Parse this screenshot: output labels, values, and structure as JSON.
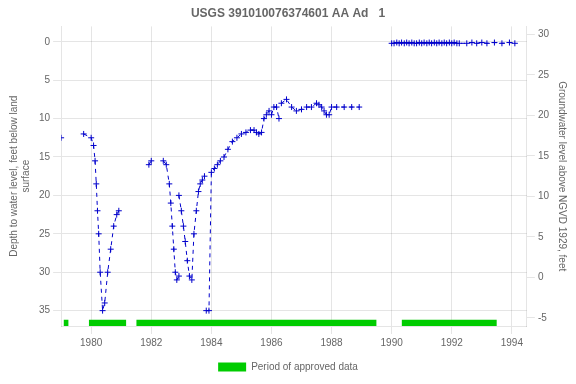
{
  "chart_data": {
    "type": "line",
    "title": "USGS 391010076374601 AA Ad   1",
    "ylabel": "Depth to water level, feet below land\nsurface",
    "y2label": "Groundwater level above NGVD 1929, feet",
    "xlim": [
      1979.0,
      1994.5
    ],
    "xticks": [
      1980,
      1982,
      1984,
      1986,
      1988,
      1990,
      1992,
      1994
    ],
    "ylim": [
      37,
      -2
    ],
    "yticks": [
      0,
      5,
      10,
      15,
      20,
      25,
      30,
      35
    ],
    "y2lim": [
      -6,
      31
    ],
    "y2ticks": [
      30,
      25,
      20,
      15,
      10,
      5,
      0,
      -5
    ],
    "grid": true,
    "legend": "bottom",
    "x": [
      1979.0,
      null,
      1979.75,
      1980.0,
      1980.08,
      1980.13,
      1980.17,
      1980.21,
      1980.25,
      1980.3,
      1980.38,
      1980.45,
      1980.55,
      1980.65,
      1980.75,
      1980.85,
      1980.92,
      null,
      1981.92,
      1982.0,
      null,
      1982.4,
      1982.5,
      1982.6,
      1982.65,
      1982.7,
      1982.75,
      1982.8,
      1982.85,
      1982.92,
      null,
      1982.92,
      1983.0,
      1983.07,
      1983.13,
      1983.2,
      1983.27,
      1983.35,
      1983.42,
      1983.5,
      1983.57,
      1983.63,
      1983.7,
      1983.77,
      null,
      1983.83,
      1983.92,
      1984.0,
      1984.1,
      1984.2,
      1984.3,
      null,
      1984.42,
      1984.55,
      1984.7,
      1984.85,
      1985.0,
      1985.15,
      1985.3,
      1985.42,
      1985.5,
      1985.58,
      1985.67,
      1985.75,
      1985.83,
      1985.92,
      1986.0,
      1986.08,
      1986.17,
      1986.25,
      null,
      1986.33,
      1986.5,
      1986.67,
      1986.83,
      1987.0,
      1987.17,
      1987.33,
      1987.5,
      1987.58,
      1987.67,
      1987.75,
      1987.83,
      1987.92,
      1988.0,
      1988.17,
      1988.42,
      1988.67,
      1988.92,
      null,
      1990.0,
      1990.08,
      1990.17,
      1990.25,
      1990.33,
      1990.42,
      1990.5,
      1990.58,
      1990.67,
      1990.75,
      1990.83,
      1990.92,
      1991.0,
      1991.08,
      1991.17,
      1991.25,
      1991.33,
      1991.42,
      1991.5,
      1991.58,
      1991.67,
      1991.75,
      1991.83,
      1991.92,
      1992.0,
      1992.08,
      1992.17,
      1992.25,
      1992.5,
      1992.67,
      1992.83,
      1993.0,
      1993.17,
      1993.42,
      1993.67,
      1993.92,
      1994.1
    ],
    "series": [
      {
        "color": "#0000cc",
        "line_style": "dashed",
        "marker": "plus",
        "values": [
          12.5,
          null,
          12.0,
          12.5,
          13.5,
          15.5,
          18.5,
          22.0,
          25.0,
          30.0,
          35.0,
          34.0,
          30.0,
          27.0,
          24.0,
          22.5,
          22.0,
          null,
          16.0,
          15.5,
          null,
          15.5,
          16.0,
          18.5,
          21.0,
          24.0,
          27.0,
          30.0,
          31.0,
          30.5,
          null,
          20.0,
          22.0,
          24.0,
          26.0,
          28.5,
          30.5,
          31.0,
          25.0,
          22.0,
          19.5,
          18.5,
          18.0,
          17.5,
          null,
          35.0,
          35.0,
          17.0,
          16.5,
          16.0,
          15.5,
          null,
          15.0,
          14.0,
          13.0,
          12.5,
          12.0,
          11.8,
          11.5,
          11.5,
          11.8,
          12.0,
          11.8,
          10.0,
          9.5,
          9.0,
          9.5,
          8.5,
          8.5,
          10.0,
          null,
          8.0,
          7.5,
          8.5,
          9.0,
          8.8,
          8.5,
          8.5,
          8.0,
          8.2,
          8.5,
          9.0,
          9.5,
          9.5,
          8.5,
          8.5,
          8.5,
          8.5,
          8.5,
          null,
          0.2,
          0.2,
          0.1,
          0.2,
          0.1,
          0.2,
          0.1,
          0.2,
          0.1,
          0.2,
          0.2,
          0.1,
          0.2,
          0.1,
          0.2,
          0.1,
          0.2,
          0.1,
          0.2,
          0.1,
          0.2,
          0.1,
          0.2,
          0.1,
          0.2,
          0.1,
          0.2,
          0.2,
          0.2,
          0.1,
          0.2,
          0.1,
          0.2,
          0.1,
          0.2,
          0.1,
          0.2
        ]
      }
    ],
    "approved_periods": {
      "name": "Period of approved data",
      "color": "#00cc00",
      "y": 36.2,
      "height": 0.8,
      "ranges": [
        [
          1979.08,
          1979.25
        ],
        [
          1979.92,
          1981.17
        ],
        [
          1981.5,
          1989.5
        ],
        [
          1990.33,
          1993.5
        ]
      ]
    }
  }
}
